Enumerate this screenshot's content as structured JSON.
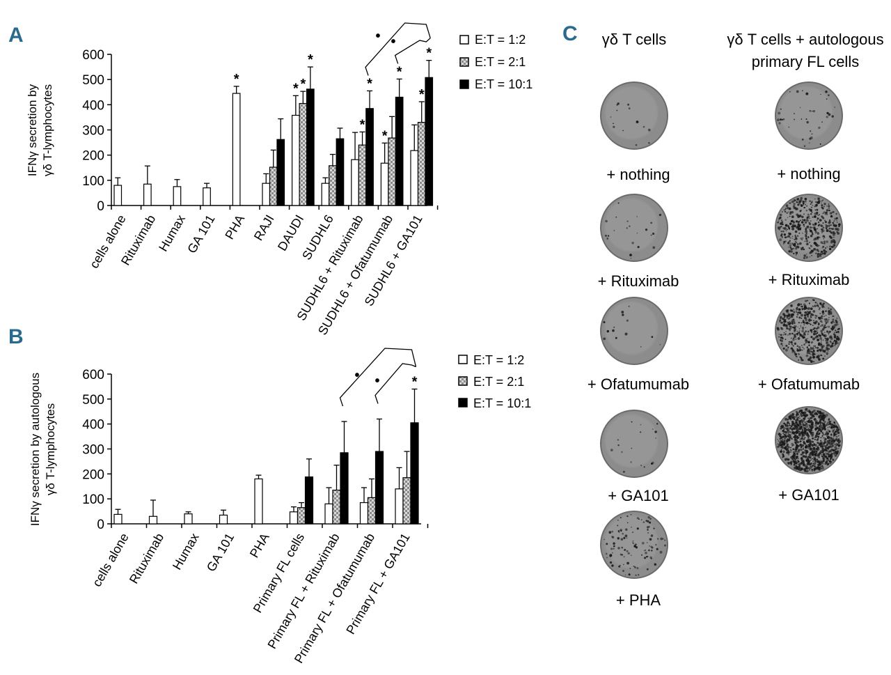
{
  "colors": {
    "accent": "#2a6a8e",
    "black": "#000000",
    "white": "#ffffff",
    "gray": "#b0b0b0"
  },
  "legend": [
    "E:T = 1:2",
    "E:T = 2:1",
    "E:T = 10:1"
  ],
  "chart_data": [
    {
      "panel": "A",
      "type": "bar",
      "ylabel": [
        "IFNγ secretion by",
        "γδ T-lymphocytes"
      ],
      "ylim": [
        0,
        600
      ],
      "yticks": [
        0,
        100,
        200,
        300,
        400,
        500,
        600
      ],
      "categories": [
        "cells alone",
        "Rituximab",
        "Humax",
        "GA 101",
        "PHA",
        "RAJI",
        "DAUDI",
        "SUDHL6",
        "SUDHL6 + Rituximab",
        "SUDHL6 + Ofatumumab",
        "SUDHL6 + GA101"
      ],
      "series": [
        {
          "name": "E:T = 1:2",
          "values": [
            80,
            85,
            75,
            70,
            445,
            88,
            358,
            88,
            182,
            168,
            218
          ],
          "errors": [
            30,
            72,
            28,
            18,
            28,
            38,
            78,
            22,
            108,
            80,
            102
          ]
        },
        {
          "name": "E:T = 2:1",
          "values": [
            null,
            null,
            null,
            null,
            null,
            152,
            405,
            158,
            240,
            268,
            330
          ],
          "errors": [
            null,
            null,
            null,
            null,
            null,
            68,
            48,
            45,
            52,
            85,
            82
          ]
        },
        {
          "name": "E:T = 10:1",
          "values": [
            null,
            null,
            null,
            null,
            null,
            262,
            462,
            265,
            385,
            430,
            508
          ],
          "errors": [
            null,
            null,
            null,
            null,
            null,
            82,
            88,
            42,
            70,
            72,
            68
          ]
        }
      ],
      "stars": [
        [
          4,
          0
        ],
        [
          6,
          0
        ],
        [
          6,
          1
        ],
        [
          6,
          2
        ],
        [
          8,
          1
        ],
        [
          8,
          2
        ],
        [
          9,
          0
        ],
        [
          9,
          2
        ],
        [
          10,
          1
        ],
        [
          10,
          2
        ]
      ],
      "star_symbol": "*",
      "dot_symbol": "•"
    },
    {
      "panel": "B",
      "type": "bar",
      "ylabel": [
        "IFNγ secretion by autologous",
        "γδ T-lymphocytes"
      ],
      "ylim": [
        0,
        600
      ],
      "yticks": [
        0,
        100,
        200,
        300,
        400,
        500,
        600
      ],
      "categories": [
        "cells alone",
        "Rituximab",
        "Humax",
        "GA 101",
        "PHA",
        "Primary FL cells",
        "Primary FL + Rituximab",
        "Primary FL + Ofatumumab",
        "Primary FL + GA101"
      ],
      "series": [
        {
          "name": "E:T = 1:2",
          "values": [
            38,
            30,
            40,
            35,
            180,
            48,
            80,
            85,
            140
          ],
          "errors": [
            20,
            65,
            8,
            20,
            15,
            20,
            65,
            60,
            85
          ]
        },
        {
          "name": "E:T = 2:1",
          "values": [
            null,
            null,
            null,
            null,
            null,
            65,
            135,
            105,
            185
          ],
          "errors": [
            null,
            null,
            null,
            null,
            null,
            20,
            100,
            75,
            105
          ]
        },
        {
          "name": "E:T = 10:1",
          "values": [
            null,
            null,
            null,
            null,
            null,
            188,
            285,
            290,
            405
          ],
          "errors": [
            null,
            null,
            null,
            null,
            null,
            72,
            125,
            130,
            135
          ]
        }
      ],
      "stars": [
        [
          8,
          2
        ]
      ],
      "star_symbol": "*",
      "dot_symbol": "•"
    }
  ],
  "panel_c": {
    "label": "C",
    "col1_title": "γδ T cells",
    "col2_title": [
      "γδ T cells + autologous",
      "primary FL cells"
    ],
    "col1": [
      {
        "label": "+ nothing",
        "spots": 14
      },
      {
        "label": "+ Rituximab",
        "spots": 22
      },
      {
        "label": "+ Ofatumumab",
        "spots": 14
      },
      {
        "label": "+ GA101",
        "spots": 18
      },
      {
        "label": "+ PHA",
        "spots": 110
      }
    ],
    "col2": [
      {
        "label": "+ nothing",
        "spots": 40
      },
      {
        "label": "+ Rituximab",
        "spots": 450
      },
      {
        "label": "+ Ofatumumab",
        "spots": 520
      },
      {
        "label": "+ GA101",
        "spots": 1100
      }
    ]
  }
}
